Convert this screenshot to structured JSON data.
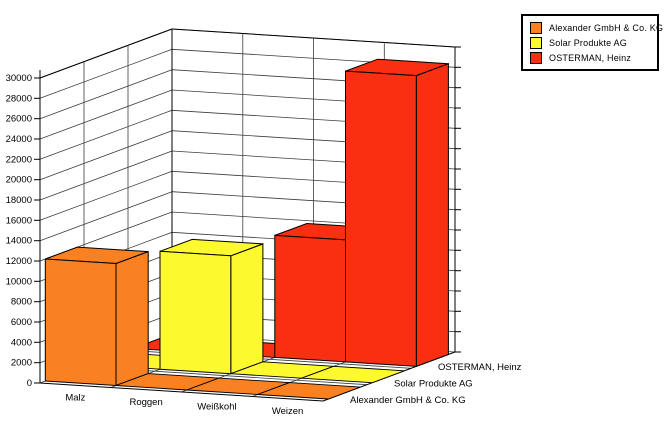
{
  "chart_data": {
    "type": "bar",
    "variant": "3d-bar",
    "title": "",
    "categories": [
      "Malz",
      "Roggen",
      "Weißkohl",
      "Weizen"
    ],
    "series": [
      {
        "name": "Alexander GmbH & Co. KG",
        "color": "#FA8122",
        "values": [
          12000,
          0,
          0,
          0
        ]
      },
      {
        "name": "Solar Produkte AG",
        "color": "#FCFA2E",
        "values": [
          0,
          11600,
          0,
          0
        ]
      },
      {
        "name": "OSTERMAN, Heinz",
        "color": "#F92F11",
        "values": [
          0,
          0,
          12000,
          28600
        ]
      }
    ],
    "depth_labels": [
      "Alexander GmbH & Co. KG",
      "Solar Produkte AG",
      "OSTERMAN, Heinz"
    ],
    "value_axis": {
      "min": 0,
      "max": 30000,
      "step": 2000,
      "tick_labels": [
        "0",
        "2000",
        "4000",
        "6000",
        "8000",
        "10000",
        "12000",
        "14000",
        "16000",
        "18000",
        "20000",
        "22000",
        "24000",
        "26000",
        "28000",
        "30000"
      ]
    },
    "legend": {
      "position": "top-right",
      "entries": [
        "Alexander GmbH & Co. KG",
        "Solar Produkte AG",
        "OSTERMAN, Heinz"
      ]
    },
    "grid": true,
    "colors": {
      "background": "#FFFFFF",
      "wall": "#FFFFFF",
      "gridline": "#3C3C3C",
      "edge": "#000000"
    }
  }
}
